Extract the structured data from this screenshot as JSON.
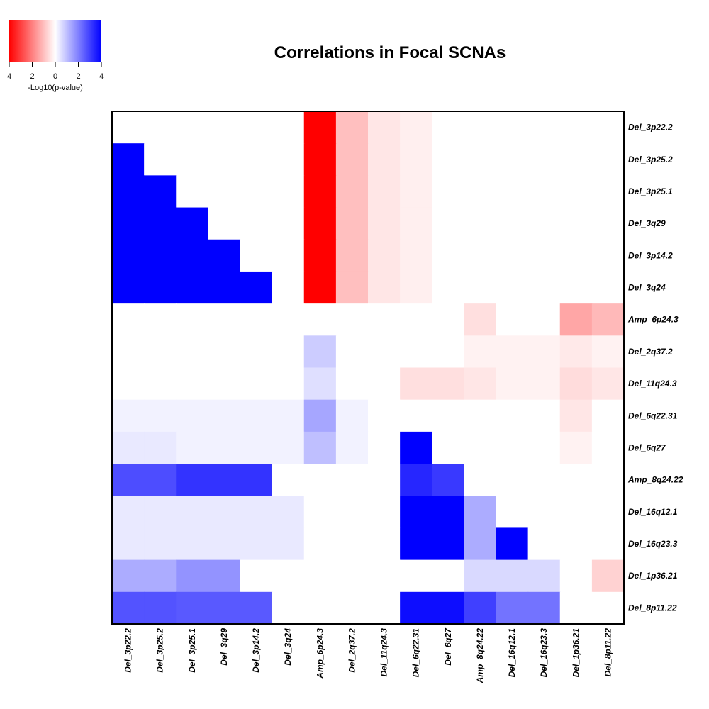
{
  "chart_data": {
    "type": "heatmap",
    "title": "Correlations in Focal SCNAs",
    "rows": [
      "Del_3p22.2",
      "Del_3p25.2",
      "Del_3p25.1",
      "Del_3q29",
      "Del_3p14.2",
      "Del_3q24",
      "Amp_6p24.3",
      "Del_2q37.2",
      "Del_11q24.3",
      "Del_6q22.31",
      "Del_6q27",
      "Amp_8q24.22",
      "Del_16q12.1",
      "Del_16q23.3",
      "Del_1p36.21",
      "Del_8p11.22"
    ],
    "columns": [
      "Del_3p22.2",
      "Del_3p25.2",
      "Del_3p25.1",
      "Del_3q29",
      "Del_3p14.2",
      "Del_3q24",
      "Amp_6p24.3",
      "Del_2q37.2",
      "Del_11q24.3",
      "Del_6q22.31",
      "Del_6q27",
      "Amp_8q24.22",
      "Del_16q12.1",
      "Del_16q23.3",
      "Del_1p36.21",
      "Del_8p11.22"
    ],
    "values": [
      [
        0,
        0,
        0,
        0,
        0,
        0,
        -4,
        -1,
        -0.4,
        -0.25,
        0,
        0,
        0,
        0,
        0,
        0
      ],
      [
        4,
        0,
        0,
        0,
        0,
        0,
        -4,
        -1,
        -0.4,
        -0.25,
        0,
        0,
        0,
        0,
        0,
        0
      ],
      [
        4,
        4,
        0,
        0,
        0,
        0,
        -4,
        -1,
        -0.4,
        -0.25,
        0,
        0,
        0,
        0,
        0,
        0
      ],
      [
        4,
        4,
        4,
        0,
        0,
        0,
        -4,
        -1,
        -0.4,
        -0.25,
        0,
        0,
        0,
        0,
        0,
        0
      ],
      [
        4,
        4,
        4,
        4,
        0,
        0,
        -4,
        -1,
        -0.4,
        -0.25,
        0,
        0,
        0,
        0,
        0,
        0
      ],
      [
        4,
        4,
        4,
        4,
        4,
        0,
        -4,
        -1,
        -0.4,
        -0.25,
        0,
        0,
        0,
        0,
        0,
        0
      ],
      [
        0,
        0,
        0,
        0,
        0,
        0,
        0,
        0,
        0,
        0,
        0,
        -0.5,
        0,
        0,
        -1.4,
        -1.1
      ],
      [
        0,
        0,
        0,
        0,
        0,
        0,
        0.8,
        0,
        0,
        0,
        0,
        -0.2,
        -0.2,
        -0.2,
        -0.35,
        -0.2
      ],
      [
        0,
        0,
        0,
        0,
        0,
        0,
        0.5,
        0,
        0,
        -0.5,
        -0.5,
        -0.4,
        -0.2,
        -0.2,
        -0.55,
        -0.4
      ],
      [
        0.2,
        0.2,
        0.2,
        0.2,
        0.2,
        0.2,
        1.4,
        0.2,
        0,
        0,
        0,
        0,
        0,
        0,
        -0.4,
        0
      ],
      [
        0.35,
        0.35,
        0.2,
        0.2,
        0.2,
        0.2,
        1.0,
        0.2,
        0,
        4,
        0,
        0,
        0,
        0,
        -0.2,
        0
      ],
      [
        2.8,
        2.8,
        3.2,
        3.2,
        3.2,
        0,
        0,
        0,
        0,
        3.4,
        3.1,
        0,
        0,
        0,
        0,
        0
      ],
      [
        0.35,
        0.35,
        0.35,
        0.35,
        0.35,
        0.35,
        0,
        0,
        0,
        4,
        4,
        1.3,
        0,
        0,
        0,
        0
      ],
      [
        0.35,
        0.35,
        0.35,
        0.35,
        0.35,
        0.35,
        0,
        0,
        0,
        4,
        4,
        1.3,
        4,
        0,
        0,
        0
      ],
      [
        1.3,
        1.3,
        1.7,
        1.7,
        0,
        0,
        0,
        0,
        0,
        0,
        0,
        0.6,
        0.6,
        0.6,
        0,
        -0.7
      ],
      [
        2.7,
        2.7,
        2.6,
        2.6,
        2.6,
        0,
        0,
        0,
        0,
        3.8,
        3.8,
        3.0,
        2.2,
        2.2,
        0,
        0
      ]
    ],
    "legend": {
      "title": "-Log10(p-value)",
      "ticks": [
        "4",
        "2",
        "0",
        "2",
        "4"
      ],
      "tick_values": [
        -4,
        -2,
        0,
        2,
        4
      ],
      "range": [
        -4,
        4
      ],
      "negative_color": "#FF0000",
      "zero_color": "#FFFFFF",
      "positive_color": "#0000FF"
    }
  }
}
